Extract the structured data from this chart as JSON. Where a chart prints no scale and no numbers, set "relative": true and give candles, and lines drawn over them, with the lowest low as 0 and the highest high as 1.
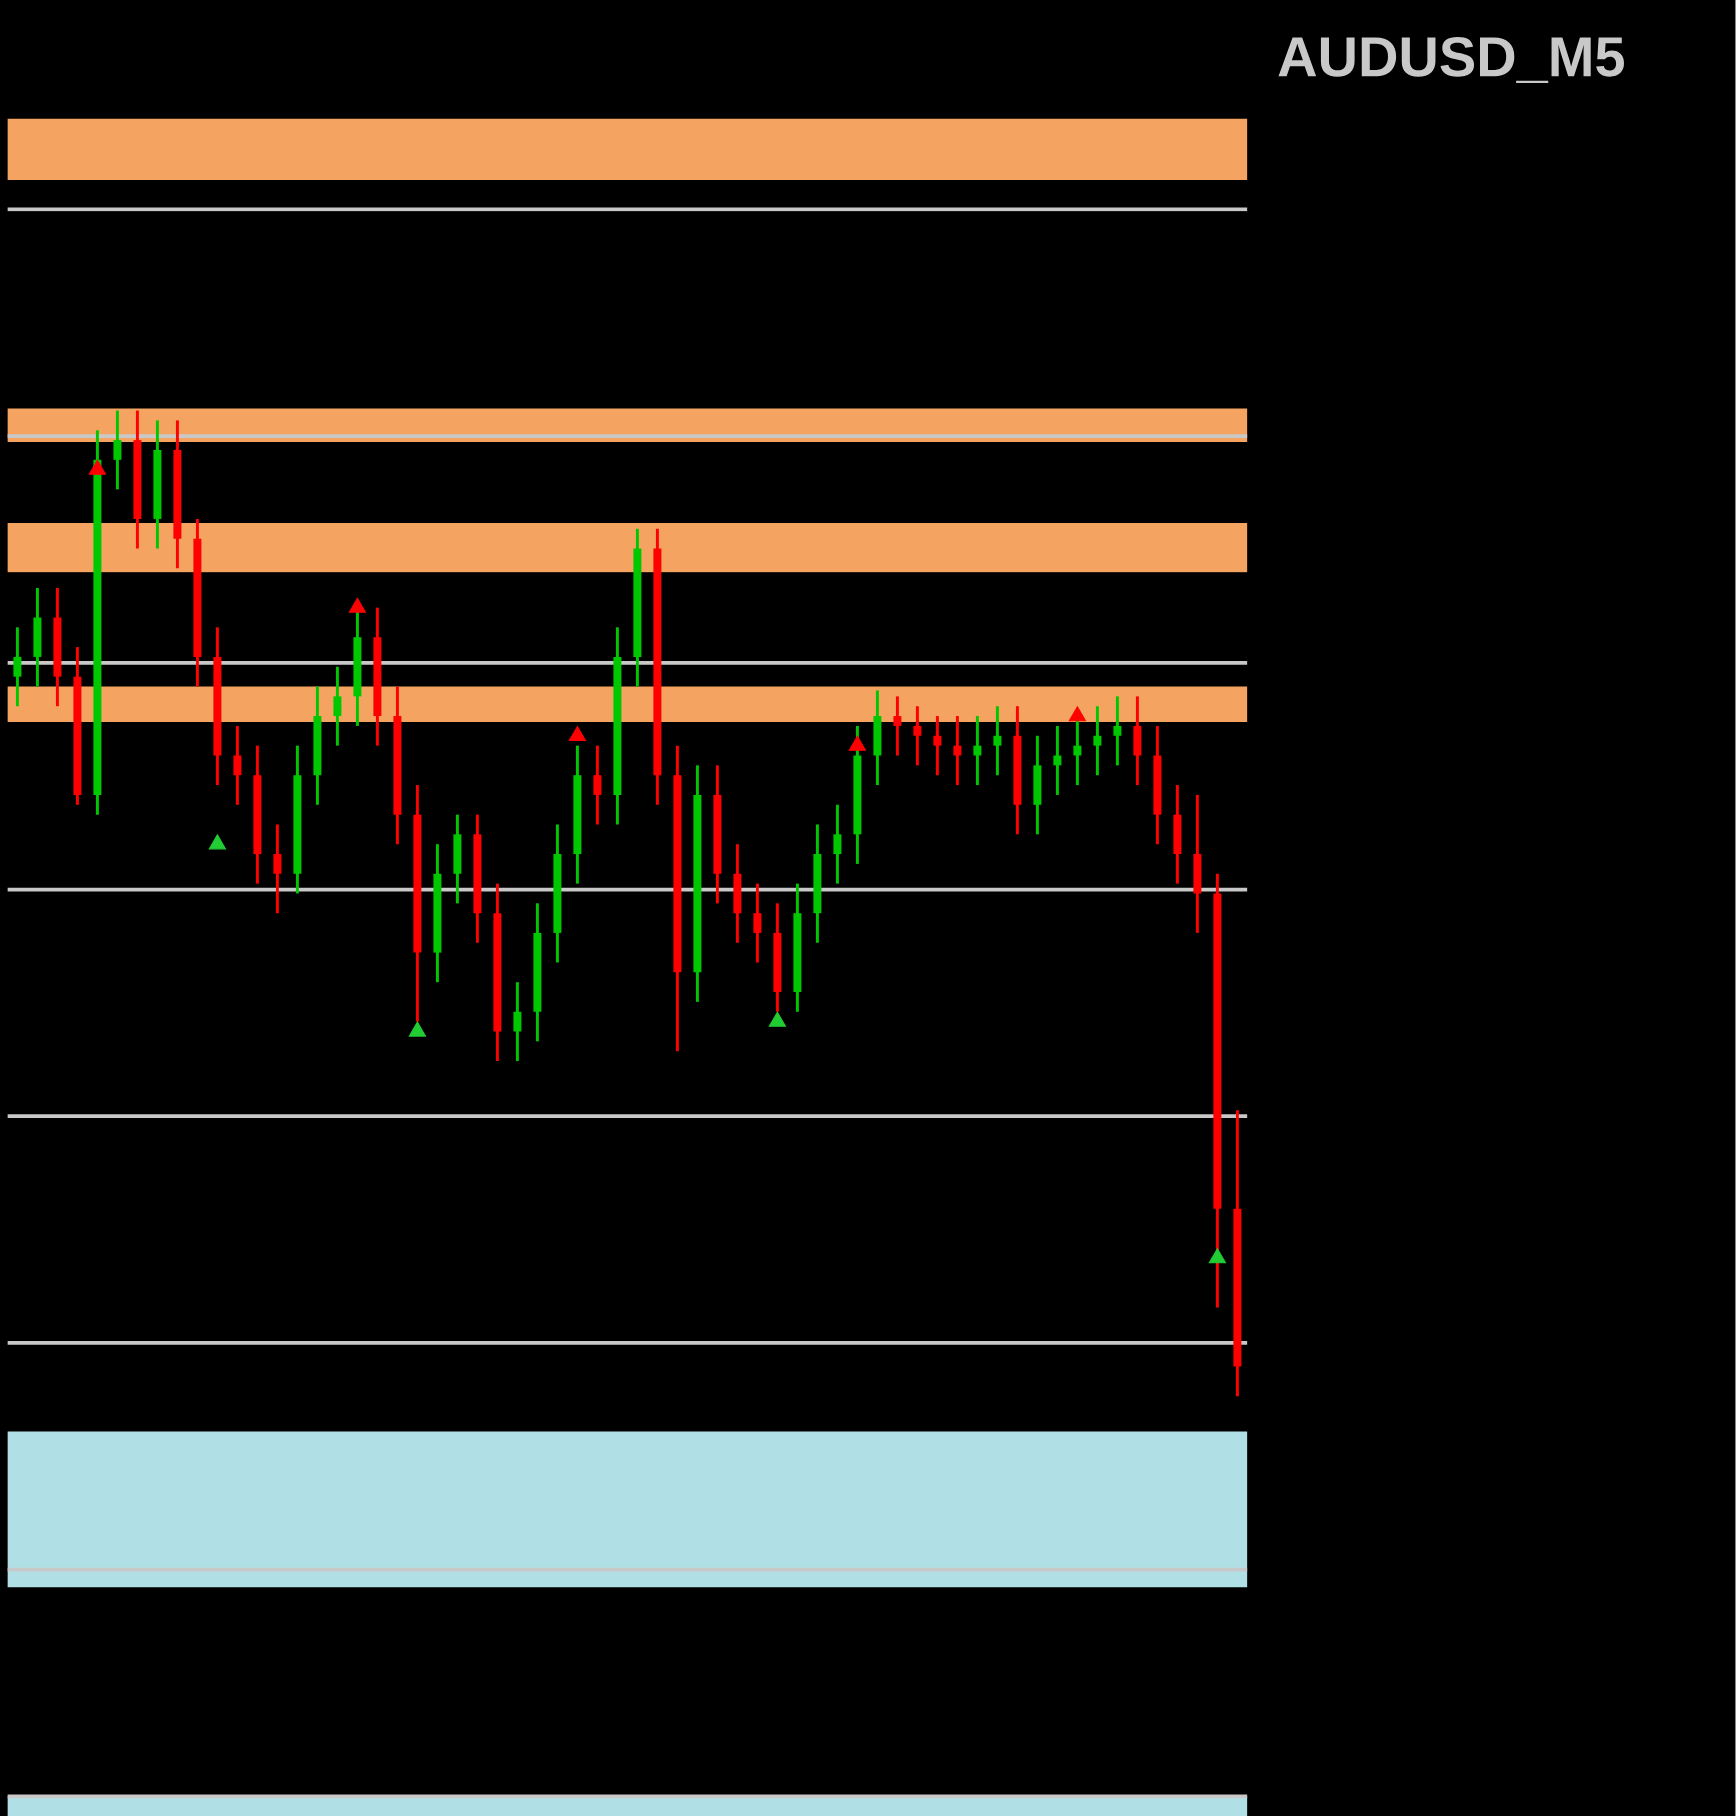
{
  "chart_data": {
    "type": "candlestick",
    "title": "AUDUSD_M5",
    "relative": true,
    "categories": [
      null,
      null,
      null,
      null,
      null,
      null,
      null,
      null,
      null,
      null,
      null,
      null,
      null,
      null,
      null,
      null,
      null,
      null,
      null,
      null,
      null,
      null,
      null,
      null,
      null,
      null,
      null,
      null,
      null,
      null,
      null,
      null,
      null,
      null,
      null,
      null,
      null,
      null,
      null,
      null,
      null,
      null,
      null,
      null,
      null,
      null,
      null,
      null,
      null,
      null,
      null,
      null,
      null,
      null,
      null,
      null,
      null,
      null,
      null,
      null,
      null,
      null
    ],
    "ohlc": [
      [
        0.73,
        0.78,
        0.7,
        0.75
      ],
      [
        0.75,
        0.82,
        0.72,
        0.79
      ],
      [
        0.79,
        0.82,
        0.7,
        0.73
      ],
      [
        0.73,
        0.76,
        0.6,
        0.61
      ],
      [
        0.61,
        0.98,
        0.59,
        0.95
      ],
      [
        0.95,
        1.0,
        0.92,
        0.97
      ],
      [
        0.97,
        1.0,
        0.86,
        0.89
      ],
      [
        0.89,
        0.99,
        0.86,
        0.96
      ],
      [
        0.96,
        0.99,
        0.84,
        0.87
      ],
      [
        0.87,
        0.89,
        0.72,
        0.75
      ],
      [
        0.75,
        0.78,
        0.62,
        0.65
      ],
      [
        0.65,
        0.68,
        0.6,
        0.63
      ],
      [
        0.63,
        0.66,
        0.52,
        0.55
      ],
      [
        0.55,
        0.58,
        0.49,
        0.53
      ],
      [
        0.53,
        0.66,
        0.51,
        0.63
      ],
      [
        0.63,
        0.72,
        0.6,
        0.69
      ],
      [
        0.69,
        0.74,
        0.66,
        0.71
      ],
      [
        0.71,
        0.8,
        0.68,
        0.77
      ],
      [
        0.77,
        0.8,
        0.66,
        0.69
      ],
      [
        0.69,
        0.72,
        0.56,
        0.59
      ],
      [
        0.59,
        0.62,
        0.38,
        0.45
      ],
      [
        0.45,
        0.56,
        0.42,
        0.53
      ],
      [
        0.53,
        0.59,
        0.5,
        0.57
      ],
      [
        0.57,
        0.59,
        0.46,
        0.49
      ],
      [
        0.49,
        0.52,
        0.34,
        0.37
      ],
      [
        0.37,
        0.42,
        0.34,
        0.39
      ],
      [
        0.39,
        0.5,
        0.36,
        0.47
      ],
      [
        0.47,
        0.58,
        0.44,
        0.55
      ],
      [
        0.55,
        0.66,
        0.52,
        0.63
      ],
      [
        0.63,
        0.66,
        0.58,
        0.61
      ],
      [
        0.61,
        0.78,
        0.58,
        0.75
      ],
      [
        0.75,
        0.88,
        0.72,
        0.86
      ],
      [
        0.86,
        0.88,
        0.6,
        0.63
      ],
      [
        0.63,
        0.66,
        0.35,
        0.43
      ],
      [
        0.43,
        0.64,
        0.4,
        0.61
      ],
      [
        0.61,
        0.64,
        0.5,
        0.53
      ],
      [
        0.53,
        0.56,
        0.46,
        0.49
      ],
      [
        0.49,
        0.52,
        0.44,
        0.47
      ],
      [
        0.47,
        0.5,
        0.39,
        0.41
      ],
      [
        0.41,
        0.52,
        0.39,
        0.49
      ],
      [
        0.49,
        0.58,
        0.46,
        0.55
      ],
      [
        0.55,
        0.6,
        0.52,
        0.57
      ],
      [
        0.57,
        0.68,
        0.54,
        0.65
      ],
      [
        0.65,
        0.716,
        0.62,
        0.69
      ],
      [
        0.69,
        0.71,
        0.65,
        0.68
      ],
      [
        0.68,
        0.7,
        0.64,
        0.67
      ],
      [
        0.67,
        0.69,
        0.63,
        0.66
      ],
      [
        0.66,
        0.69,
        0.62,
        0.65
      ],
      [
        0.65,
        0.69,
        0.62,
        0.66
      ],
      [
        0.66,
        0.7,
        0.63,
        0.67
      ],
      [
        0.67,
        0.7,
        0.57,
        0.6
      ],
      [
        0.6,
        0.67,
        0.57,
        0.64
      ],
      [
        0.64,
        0.68,
        0.61,
        0.65
      ],
      [
        0.65,
        0.69,
        0.62,
        0.66
      ],
      [
        0.66,
        0.7,
        0.63,
        0.67
      ],
      [
        0.67,
        0.71,
        0.64,
        0.68
      ],
      [
        0.68,
        0.71,
        0.62,
        0.65
      ],
      [
        0.65,
        0.68,
        0.56,
        0.59
      ],
      [
        0.59,
        0.62,
        0.52,
        0.55
      ],
      [
        0.55,
        0.61,
        0.47,
        0.51
      ],
      [
        0.51,
        0.53,
        0.09,
        0.19
      ],
      [
        0.19,
        0.29,
        0.0,
        0.03
      ]
    ],
    "colors": [
      "#00c800",
      "#00c800",
      "#ff0000",
      "#ff0000",
      "#00c800",
      "#00c800",
      "#ff0000",
      "#00c800",
      "#ff0000",
      "#ff0000",
      "#ff0000",
      "#ff0000",
      "#ff0000",
      "#ff0000",
      "#00c800",
      "#00c800",
      "#00c800",
      "#00c800",
      "#ff0000",
      "#ff0000",
      "#ff0000",
      "#00c800",
      "#00c800",
      "#ff0000",
      "#ff0000",
      "#00c800",
      "#00c800",
      "#00c800",
      "#00c800",
      "#ff0000",
      "#00c800",
      "#00c800",
      "#ff0000",
      "#ff0000",
      "#00c800",
      "#ff0000",
      "#ff0000",
      "#ff0000",
      "#ff0000",
      "#00c800",
      "#00c800",
      "#00c800",
      "#00c800",
      "#00c800",
      "#ff0000",
      "#ff0000",
      "#ff0000",
      "#ff0000",
      "#00c800",
      "#00c800",
      "#ff0000",
      "#00c800",
      "#00c800",
      "#00c800",
      "#00c800",
      "#00c800",
      "#ff0000",
      "#ff0000",
      "#ff0000",
      "#ff0000",
      "#ff0000",
      "#ff0000"
    ],
    "series": [
      {
        "type": "scatter",
        "color": "#ff0000",
        "marker": "triangle",
        "values": [
          null,
          null,
          null,
          null,
          0.94,
          null,
          null,
          null,
          null,
          null,
          null,
          null,
          null,
          null,
          null,
          null,
          null,
          0.8,
          null,
          null,
          null,
          null,
          null,
          null,
          null,
          null,
          null,
          null,
          0.67,
          null,
          null,
          null,
          null,
          null,
          null,
          null,
          null,
          null,
          null,
          null,
          null,
          null,
          0.66,
          null,
          null,
          null,
          null,
          null,
          null,
          null,
          null,
          null,
          null,
          0.69,
          null,
          null,
          null,
          null,
          null,
          null,
          null,
          null
        ]
      },
      {
        "type": "scatter",
        "color": "#22cc33",
        "marker": "triangle",
        "values": [
          null,
          null,
          null,
          null,
          null,
          null,
          null,
          null,
          null,
          null,
          0.56,
          null,
          null,
          null,
          null,
          null,
          null,
          null,
          null,
          null,
          0.37,
          null,
          null,
          null,
          null,
          null,
          null,
          null,
          null,
          null,
          null,
          null,
          null,
          null,
          null,
          null,
          null,
          null,
          0.38,
          null,
          null,
          null,
          null,
          null,
          null,
          null,
          null,
          null,
          null,
          null,
          null,
          null,
          null,
          null,
          null,
          null,
          null,
          null,
          null,
          null,
          0.14,
          null
        ]
      }
    ],
    "bands": [
      {
        "axis": "y",
        "from": 1.234,
        "to": 1.296,
        "color": "#f4a460"
      },
      {
        "axis": "y",
        "from": 0.968,
        "to": 1.002,
        "color": "#f4a460"
      },
      {
        "axis": "y",
        "from": 0.836,
        "to": 0.886,
        "color": "#f4a460"
      },
      {
        "axis": "y",
        "from": 0.684,
        "to": 0.72,
        "color": "#f4a460"
      },
      {
        "axis": "y",
        "from": -0.194,
        "to": -0.036,
        "color": "#b0e0e6"
      },
      {
        "axis": "y",
        "from": -0.426,
        "to": -0.406,
        "color": "#b0e0e6"
      }
    ],
    "ref_lines": [
      {
        "axis": "y",
        "value": 1.204,
        "color": "#c8c8c8"
      },
      {
        "axis": "y",
        "value": 0.974,
        "color": "#c8c8c8"
      },
      {
        "axis": "y",
        "value": 0.744,
        "color": "#c8c8c8"
      },
      {
        "axis": "y",
        "value": 0.514,
        "color": "#c8c8c8"
      },
      {
        "axis": "y",
        "value": 0.284,
        "color": "#c8c8c8"
      },
      {
        "axis": "y",
        "value": 0.054,
        "color": "#c8c8c8"
      },
      {
        "axis": "y",
        "value": -0.176,
        "color": "#c8c8c8"
      },
      {
        "axis": "y",
        "value": -0.406,
        "color": "#c8c8c8"
      }
    ]
  }
}
